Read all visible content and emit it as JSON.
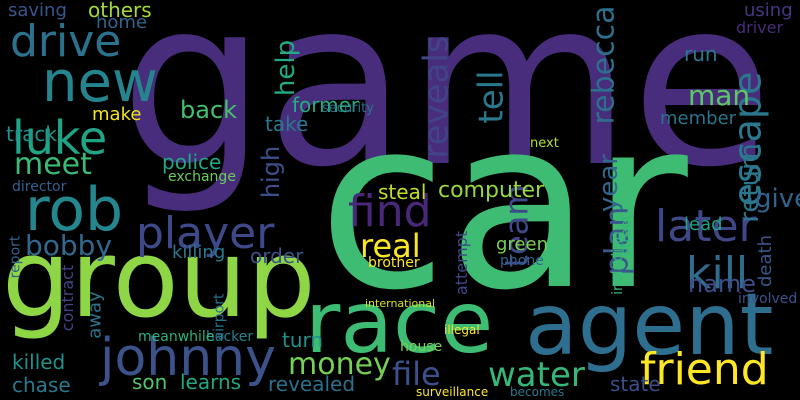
{
  "words": [
    {
      "text": "game",
      "color": "#472d7b"
    },
    {
      "text": "car",
      "color": "#3fbc73"
    },
    {
      "text": "group",
      "color": "#8ed645"
    },
    {
      "text": "agent",
      "color": "#2e6e8e"
    },
    {
      "text": "race",
      "color": "#3dbc74"
    },
    {
      "text": "new",
      "color": "#25858e"
    },
    {
      "text": "rob",
      "color": "#24868e"
    },
    {
      "text": "luke",
      "color": "#20a486"
    },
    {
      "text": "drive",
      "color": "#2c728e"
    },
    {
      "text": "johnny",
      "color": "#3b528b"
    },
    {
      "text": "find",
      "color": "#482878"
    },
    {
      "text": "player",
      "color": "#3e4989"
    },
    {
      "text": "friend",
      "color": "#fde725"
    },
    {
      "text": "later",
      "color": "#3f4788"
    },
    {
      "text": "kill",
      "color": "#2f6c8e"
    },
    {
      "text": "real",
      "color": "#fde725"
    },
    {
      "text": "water",
      "color": "#35b779"
    },
    {
      "text": "money",
      "color": "#75d054"
    },
    {
      "text": "bobby",
      "color": "#31688e"
    },
    {
      "text": "meet",
      "color": "#3aba76"
    },
    {
      "text": "file",
      "color": "#3b518b"
    },
    {
      "text": "escape",
      "color": "#2a778e"
    },
    {
      "text": "team",
      "color": "#3e4a89"
    },
    {
      "text": "tell",
      "color": "#2a788e"
    },
    {
      "text": "reveals",
      "color": "#414487"
    },
    {
      "text": "rebecca",
      "color": "#2e6f8e"
    },
    {
      "text": "plan",
      "color": "#38588c"
    },
    {
      "text": "return",
      "color": "#2b758e"
    },
    {
      "text": "help",
      "color": "#23a983"
    },
    {
      "text": "high",
      "color": "#3c4f8a"
    },
    {
      "text": "man",
      "color": "#5cc863"
    },
    {
      "text": "computer",
      "color": "#95d840"
    },
    {
      "text": "steal",
      "color": "#c2df23"
    },
    {
      "text": "track",
      "color": "#21918c"
    },
    {
      "text": "killed",
      "color": "#20928c"
    },
    {
      "text": "learns",
      "color": "#22a884"
    },
    {
      "text": "son",
      "color": "#54c568"
    },
    {
      "text": "chase",
      "color": "#2a788e"
    },
    {
      "text": "turn",
      "color": "#20928c"
    },
    {
      "text": "revealed",
      "color": "#2d708e"
    },
    {
      "text": "back",
      "color": "#46c06f"
    },
    {
      "text": "take",
      "color": "#2a778e"
    },
    {
      "text": "give",
      "color": "#33638d"
    },
    {
      "text": "order",
      "color": "#3b528b"
    },
    {
      "text": "name",
      "color": "#3e4c8a"
    },
    {
      "text": "state",
      "color": "#3d4e8a"
    },
    {
      "text": "police",
      "color": "#22a785"
    },
    {
      "text": "former",
      "color": "#26ad81"
    },
    {
      "text": "year",
      "color": "#31688e"
    },
    {
      "text": "killing",
      "color": "#2a788e"
    },
    {
      "text": "green",
      "color": "#7ad151"
    },
    {
      "text": "others",
      "color": "#a5db36"
    },
    {
      "text": "home",
      "color": "#33638d"
    },
    {
      "text": "saving",
      "color": "#39568c"
    },
    {
      "text": "make",
      "color": "#f1e51d"
    },
    {
      "text": "lead",
      "color": "#20a386"
    },
    {
      "text": "run",
      "color": "#2a788e"
    },
    {
      "text": "using",
      "color": "#453781"
    },
    {
      "text": "driver",
      "color": "#472c7a"
    },
    {
      "text": "member",
      "color": "#2c738e"
    },
    {
      "text": "death",
      "color": "#38588c"
    },
    {
      "text": "attempt",
      "color": "#3e4989"
    },
    {
      "text": "contract",
      "color": "#414487"
    },
    {
      "text": "away",
      "color": "#2b748e"
    },
    {
      "text": "report",
      "color": "#33638d"
    },
    {
      "text": "director",
      "color": "#34618d"
    },
    {
      "text": "exchange",
      "color": "#6ccd5a"
    },
    {
      "text": "street",
      "color": "#32b67a"
    },
    {
      "text": "phone",
      "color": "#32648e"
    },
    {
      "text": "involved",
      "color": "#3b528b"
    },
    {
      "text": "hacker",
      "color": "#27808e"
    },
    {
      "text": "meanwhile",
      "color": "#2db27d"
    },
    {
      "text": "airport",
      "color": "#2c738e"
    },
    {
      "text": "brother",
      "color": "#fde725"
    },
    {
      "text": "security",
      "color": "#2c728e"
    },
    {
      "text": "next",
      "color": "#b5de2b"
    },
    {
      "text": "international",
      "color": "#d8e219"
    },
    {
      "text": "surveillance",
      "color": "#fde725"
    },
    {
      "text": "becomes",
      "color": "#2a788e"
    },
    {
      "text": "house",
      "color": "#7ad151"
    },
    {
      "text": "illegal",
      "color": "#fde725"
    },
    {
      "text": "including",
      "color": "#37b878"
    }
  ]
}
